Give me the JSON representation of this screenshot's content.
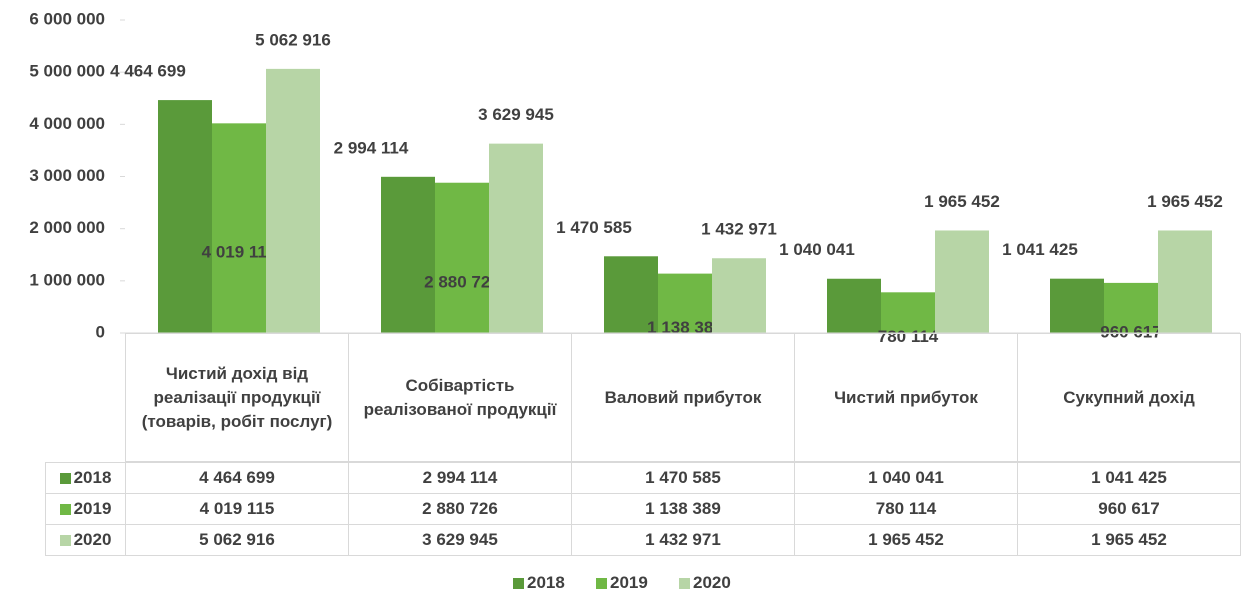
{
  "chart_data": {
    "type": "bar",
    "categories": [
      "Чистий дохід від реалізації продукції (товарів, робіт послуг)",
      "Собівартість реалізованої продукції",
      "Валовий прибуток",
      "Чистий прибуток",
      "Сукупний дохід"
    ],
    "series": [
      {
        "name": "2018",
        "color": "#5a9a3a",
        "values": [
          4464699,
          2994114,
          1470585,
          1040041,
          1041425
        ],
        "value_labels": [
          "4 464 699",
          "2 994 114",
          "1 470 585",
          "1 040 041",
          "1 041 425"
        ]
      },
      {
        "name": "2019",
        "color": "#70b845",
        "values": [
          4019115,
          2880726,
          1138389,
          780114,
          960617
        ],
        "value_labels": [
          "4 019 115",
          "2 880 726",
          "1 138 389",
          "780 114",
          "960 617"
        ]
      },
      {
        "name": "2020",
        "color": "#b7d5a6",
        "values": [
          5062916,
          3629945,
          1432971,
          1965452,
          1965452
        ],
        "value_labels": [
          "5 062 916",
          "3 629 945",
          "1 432 971",
          "1 965 452",
          "1 965 452"
        ]
      }
    ],
    "ylim": [
      0,
      6000000
    ],
    "yticks": [
      0,
      {
        "value": 1000000,
        "label": "1 000 000"
      },
      {
        "value": 2000000,
        "label": "2 000 000"
      },
      {
        "value": 3000000,
        "label": "3 000 000"
      },
      {
        "value": 4000000,
        "label": "4 000 000"
      },
      {
        "value": 5000000,
        "label": "5 000 000"
      },
      {
        "value": 6000000,
        "label": "6 000 000"
      }
    ],
    "legend": "bottom"
  }
}
